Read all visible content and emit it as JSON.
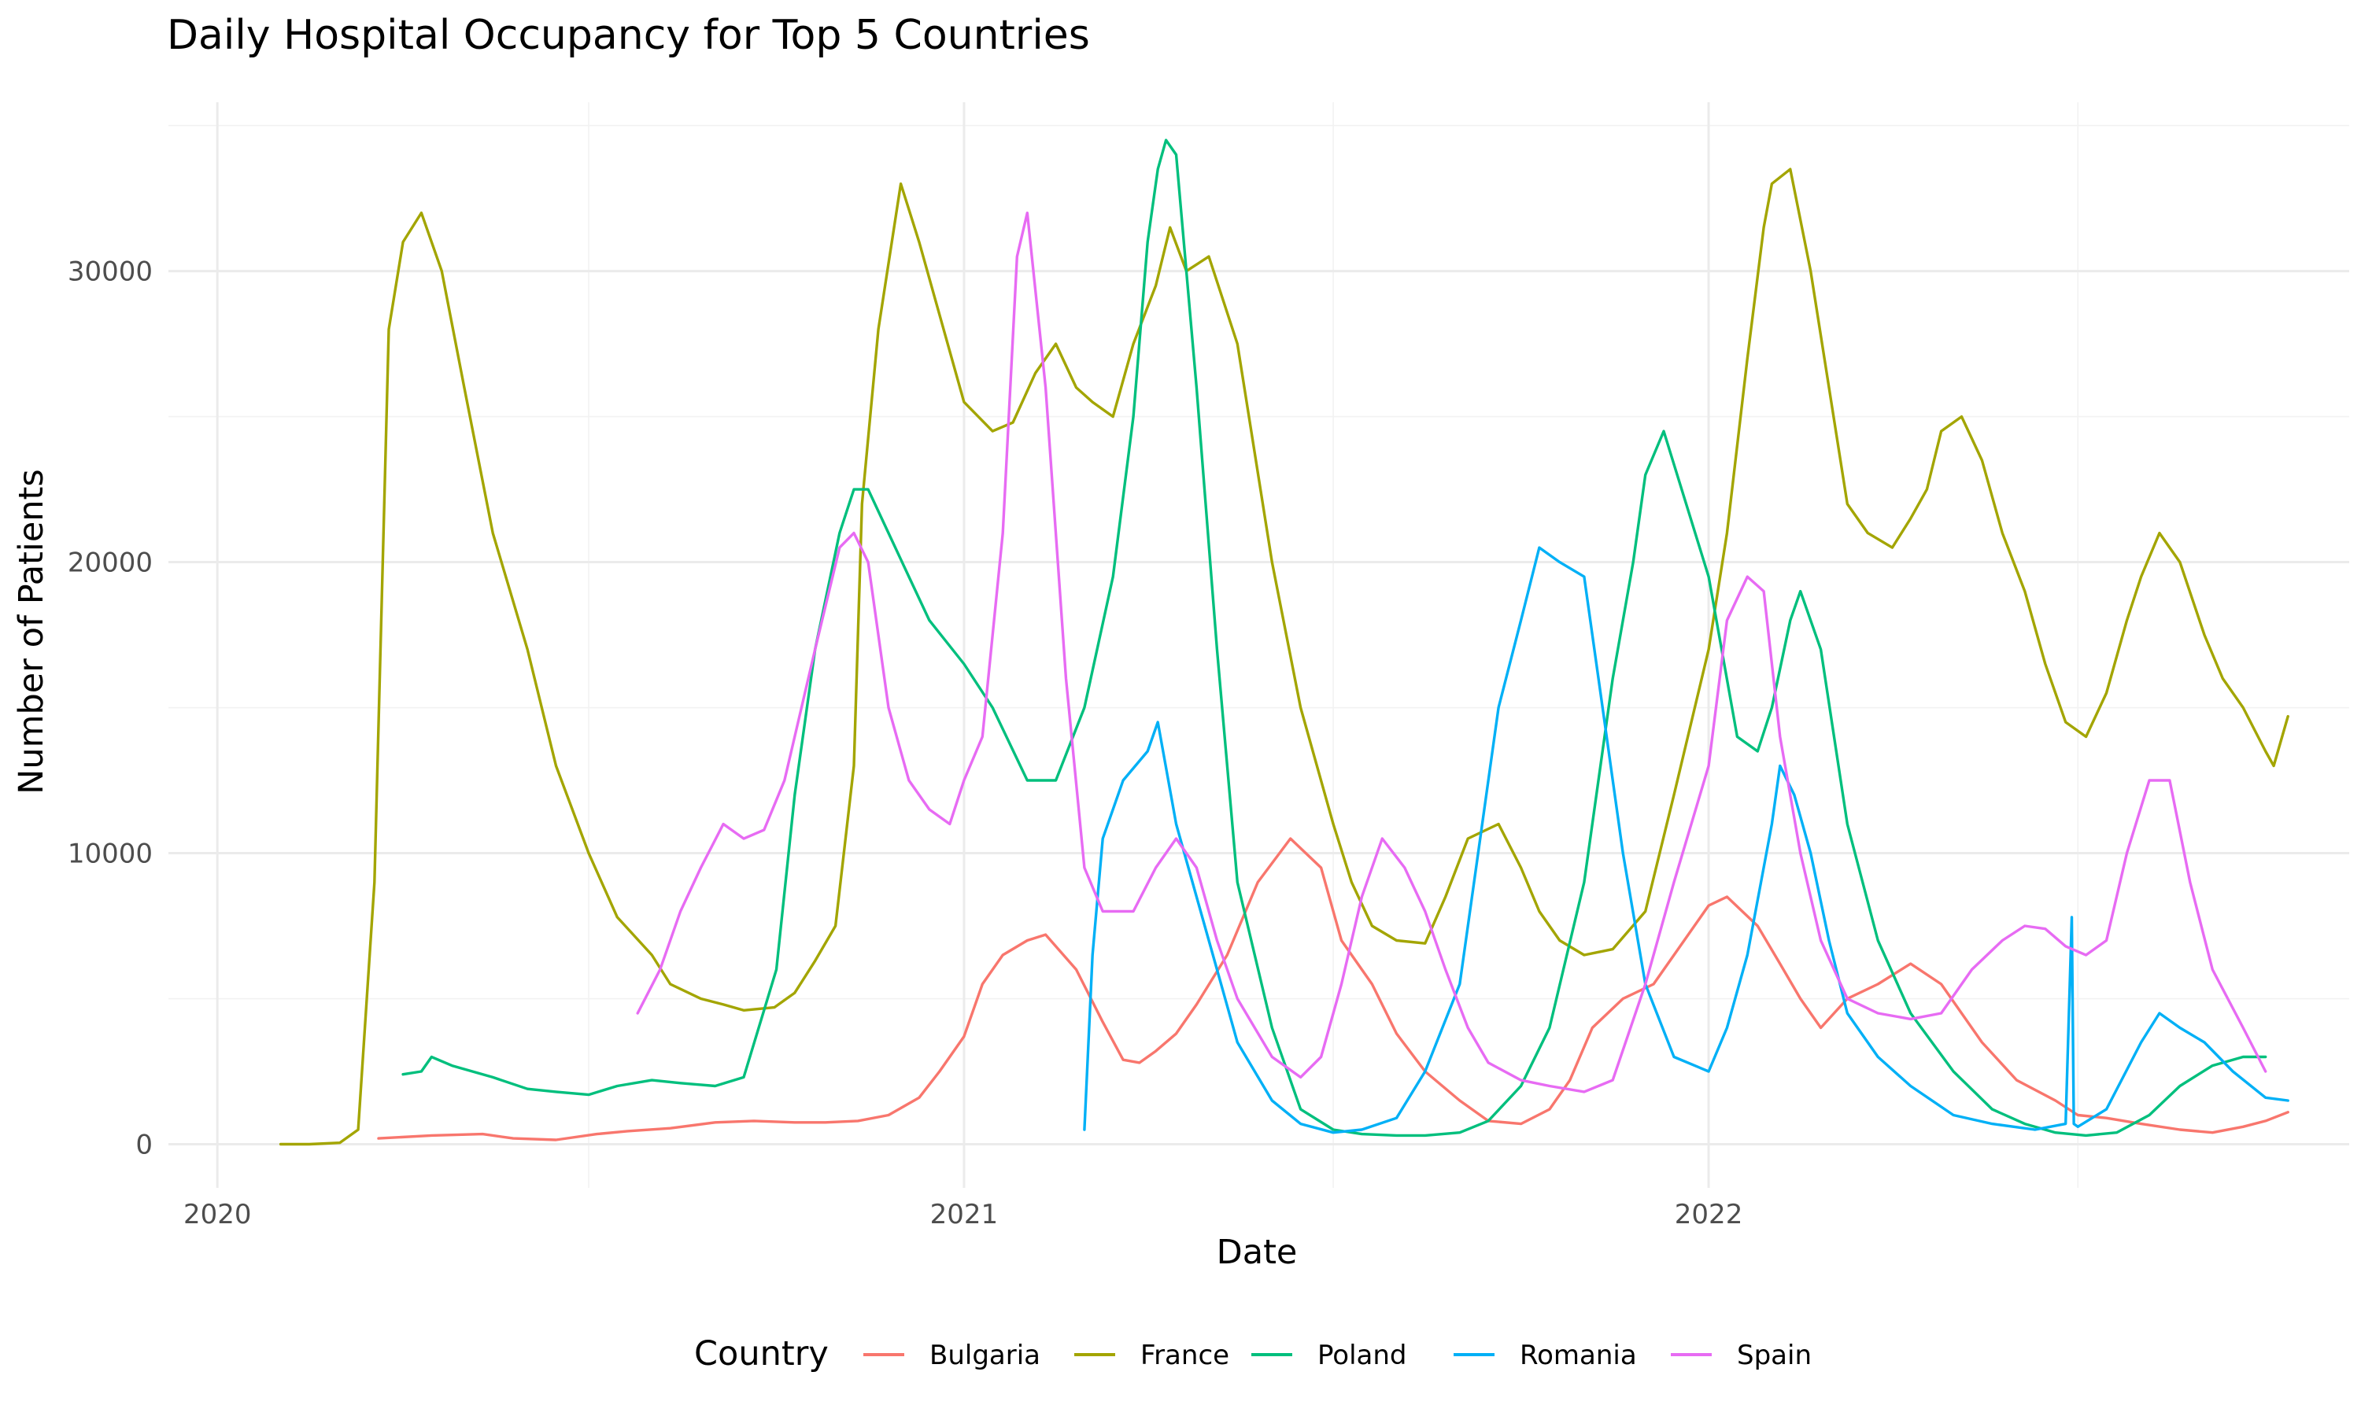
{
  "chart_data": {
    "type": "line",
    "title": "Daily Hospital Occupancy for Top 5 Countries",
    "xlabel": "Date",
    "ylabel": "Number of Patients",
    "x_type": "date",
    "xlim": [
      "2019-12-08",
      "2022-11-11"
    ],
    "ylim": [
      -1500,
      35800
    ],
    "x_ticks": [
      {
        "date": "2020-01-01",
        "label": "2020"
      },
      {
        "date": "2021-01-01",
        "label": "2021"
      },
      {
        "date": "2022-01-01",
        "label": "2022"
      }
    ],
    "x_minor_ticks": [
      "2020-07-01",
      "2021-07-01",
      "2022-07-01"
    ],
    "y_ticks": [
      0,
      10000,
      20000,
      30000
    ],
    "y_minor_ticks": [
      5000,
      15000,
      25000,
      35000
    ],
    "grid": true,
    "legend": {
      "title": "Country",
      "position": "bottom"
    },
    "series": [
      {
        "name": "Bulgaria",
        "color": "#F8766D",
        "x": [
          "2020-03-20",
          "2020-04-15",
          "2020-05-10",
          "2020-05-25",
          "2020-06-15",
          "2020-07-05",
          "2020-07-20",
          "2020-08-10",
          "2020-09-01",
          "2020-09-20",
          "2020-10-10",
          "2020-10-25",
          "2020-11-10",
          "2020-11-25",
          "2020-12-10",
          "2020-12-20",
          "2021-01-01",
          "2021-01-10",
          "2021-01-20",
          "2021-02-01",
          "2021-02-10",
          "2021-02-25",
          "2021-03-10",
          "2021-03-20",
          "2021-03-28",
          "2021-04-05",
          "2021-04-15",
          "2021-04-25",
          "2021-05-10",
          "2021-05-25",
          "2021-06-10",
          "2021-06-25",
          "2021-07-05",
          "2021-07-20",
          "2021-08-01",
          "2021-08-15",
          "2021-09-01",
          "2021-09-15",
          "2021-10-01",
          "2021-10-15",
          "2021-10-25",
          "2021-11-05",
          "2021-11-20",
          "2021-12-05",
          "2021-12-20",
          "2022-01-01",
          "2022-01-10",
          "2022-01-25",
          "2022-02-05",
          "2022-02-15",
          "2022-02-25",
          "2022-03-10",
          "2022-03-25",
          "2022-04-10",
          "2022-04-25",
          "2022-05-15",
          "2022-06-01",
          "2022-06-20",
          "2022-07-01",
          "2022-07-15",
          "2022-08-01",
          "2022-08-20",
          "2022-09-05",
          "2022-09-20",
          "2022-10-01",
          "2022-10-12"
        ],
        "y": [
          200,
          300,
          350,
          200,
          150,
          350,
          450,
          550,
          750,
          800,
          750,
          750,
          800,
          1000,
          1600,
          2500,
          3700,
          5500,
          6500,
          7000,
          7200,
          6000,
          4200,
          2900,
          2800,
          3200,
          3800,
          4800,
          6500,
          9000,
          10500,
          9500,
          7000,
          5500,
          3800,
          2500,
          1500,
          800,
          700,
          1200,
          2200,
          4000,
          5000,
          5500,
          7000,
          8200,
          8500,
          7500,
          6200,
          5000,
          4000,
          5000,
          5500,
          6200,
          5500,
          3500,
          2200,
          1500,
          1000,
          900,
          700,
          500,
          400,
          600,
          800,
          1100
        ]
      },
      {
        "name": "France",
        "color": "#A3A500",
        "x": [
          "2020-02-01",
          "2020-02-15",
          "2020-03-01",
          "2020-03-10",
          "2020-03-18",
          "2020-03-25",
          "2020-04-01",
          "2020-04-10",
          "2020-04-20",
          "2020-05-01",
          "2020-05-15",
          "2020-06-01",
          "2020-06-15",
          "2020-07-01",
          "2020-07-15",
          "2020-08-01",
          "2020-08-10",
          "2020-08-25",
          "2020-09-05",
          "2020-09-15",
          "2020-09-30",
          "2020-10-10",
          "2020-10-20",
          "2020-10-30",
          "2020-11-08",
          "2020-11-12",
          "2020-11-20",
          "2020-12-01",
          "2020-12-10",
          "2020-12-20",
          "2021-01-01",
          "2021-01-15",
          "2021-01-25",
          "2021-02-05",
          "2021-02-15",
          "2021-02-25",
          "2021-03-05",
          "2021-03-15",
          "2021-03-25",
          "2021-04-05",
          "2021-04-12",
          "2021-04-20",
          "2021-05-01",
          "2021-05-15",
          "2021-06-01",
          "2021-06-15",
          "2021-07-01",
          "2021-07-10",
          "2021-07-20",
          "2021-08-01",
          "2021-08-15",
          "2021-08-25",
          "2021-09-05",
          "2021-09-20",
          "2021-10-01",
          "2021-10-10",
          "2021-10-20",
          "2021-11-01",
          "2021-11-15",
          "2021-12-01",
          "2021-12-15",
          "2022-01-01",
          "2022-01-10",
          "2022-01-20",
          "2022-01-28",
          "2022-02-01",
          "2022-02-10",
          "2022-02-20",
          "2022-03-01",
          "2022-03-10",
          "2022-03-20",
          "2022-04-01",
          "2022-04-10",
          "2022-04-18",
          "2022-04-25",
          "2022-05-05",
          "2022-05-15",
          "2022-05-25",
          "2022-06-05",
          "2022-06-15",
          "2022-06-25",
          "2022-07-05",
          "2022-07-15",
          "2022-07-25",
          "2022-08-01",
          "2022-08-10",
          "2022-08-20",
          "2022-09-01",
          "2022-09-10",
          "2022-09-20",
          "2022-10-01",
          "2022-10-05",
          "2022-10-12"
        ],
        "y": [
          0,
          0,
          50,
          500,
          9000,
          28000,
          31000,
          32000,
          30000,
          26000,
          21000,
          17000,
          13000,
          10000,
          7800,
          6500,
          5500,
          5000,
          4800,
          4600,
          4700,
          5200,
          6300,
          7500,
          13000,
          22000,
          28000,
          33000,
          31000,
          28500,
          25500,
          24500,
          24800,
          26500,
          27500,
          26000,
          25500,
          25000,
          27500,
          29500,
          31500,
          30000,
          30500,
          27500,
          20000,
          15000,
          11000,
          9000,
          7500,
          7000,
          6900,
          8500,
          10500,
          11000,
          9500,
          8000,
          7000,
          6500,
          6700,
          8000,
          12000,
          17000,
          21000,
          27000,
          31500,
          33000,
          33500,
          30000,
          26000,
          22000,
          21000,
          20500,
          21500,
          22500,
          24500,
          25000,
          23500,
          21000,
          19000,
          16500,
          14500,
          14000,
          15500,
          18000,
          19500,
          21000,
          20000,
          17500,
          16000,
          15000,
          13500,
          13000,
          14700
        ]
      },
      {
        "name": "Poland",
        "color": "#00BF7D",
        "x": [
          "2020-04-01",
          "2020-04-10",
          "2020-04-15",
          "2020-04-25",
          "2020-05-15",
          "2020-06-01",
          "2020-06-15",
          "2020-07-01",
          "2020-07-15",
          "2020-08-01",
          "2020-08-15",
          "2020-09-01",
          "2020-09-15",
          "2020-10-01",
          "2020-10-10",
          "2020-10-20",
          "2020-11-01",
          "2020-11-08",
          "2020-11-15",
          "2020-11-25",
          "2020-12-05",
          "2020-12-15",
          "2021-01-01",
          "2021-01-15",
          "2021-02-01",
          "2021-02-15",
          "2021-03-01",
          "2021-03-15",
          "2021-03-25",
          "2021-04-01",
          "2021-04-06",
          "2021-04-10",
          "2021-04-15",
          "2021-04-25",
          "2021-05-05",
          "2021-05-15",
          "2021-06-01",
          "2021-06-15",
          "2021-07-01",
          "2021-07-15",
          "2021-08-01",
          "2021-08-15",
          "2021-09-01",
          "2021-09-15",
          "2021-10-01",
          "2021-10-15",
          "2021-11-01",
          "2021-11-15",
          "2021-11-25",
          "2021-12-01",
          "2021-12-10",
          "2022-01-01",
          "2022-01-15",
          "2022-01-25",
          "2022-02-01",
          "2022-02-10",
          "2022-02-15",
          "2022-02-25",
          "2022-03-10",
          "2022-03-25",
          "2022-04-10",
          "2022-05-01",
          "2022-05-20",
          "2022-06-05",
          "2022-06-20",
          "2022-07-05",
          "2022-07-20",
          "2022-08-05",
          "2022-08-20",
          "2022-09-05",
          "2022-09-20",
          "2022-10-01"
        ],
        "y": [
          2400,
          2500,
          3000,
          2700,
          2300,
          1900,
          1800,
          1700,
          2000,
          2200,
          2100,
          2000,
          2300,
          6000,
          12000,
          17000,
          21000,
          22500,
          22500,
          21000,
          19500,
          18000,
          16500,
          15000,
          12500,
          12500,
          15000,
          19500,
          25000,
          31000,
          33500,
          34500,
          34000,
          26000,
          17000,
          9000,
          4000,
          1200,
          500,
          350,
          300,
          300,
          400,
          800,
          2000,
          4000,
          9000,
          16000,
          20000,
          23000,
          24500,
          19500,
          14000,
          13500,
          15000,
          18000,
          19000,
          17000,
          11000,
          7000,
          4500,
          2500,
          1200,
          700,
          400,
          300,
          400,
          1000,
          2000,
          2700,
          3000,
          3000
        ]
      },
      {
        "name": "Romania",
        "color": "#00B0F6",
        "x": [
          "2021-03-01",
          "2021-03-05",
          "2021-03-10",
          "2021-03-20",
          "2021-04-01",
          "2021-04-06",
          "2021-04-15",
          "2021-04-25",
          "2021-05-05",
          "2021-05-15",
          "2021-06-01",
          "2021-06-15",
          "2021-07-01",
          "2021-07-15",
          "2021-08-01",
          "2021-08-15",
          "2021-09-01",
          "2021-09-10",
          "2021-09-20",
          "2021-10-01",
          "2021-10-10",
          "2021-10-20",
          "2021-11-01",
          "2021-11-10",
          "2021-11-20",
          "2021-12-01",
          "2021-12-15",
          "2022-01-01",
          "2022-01-10",
          "2022-01-20",
          "2022-02-01",
          "2022-02-05",
          "2022-02-12",
          "2022-02-20",
          "2022-03-01",
          "2022-03-10",
          "2022-03-25",
          "2022-04-10",
          "2022-05-01",
          "2022-05-20",
          "2022-06-10",
          "2022-06-25",
          "2022-06-28",
          "2022-06-29",
          "2022-07-01",
          "2022-07-15",
          "2022-08-01",
          "2022-08-10",
          "2022-08-20",
          "2022-09-01",
          "2022-09-15",
          "2022-10-01",
          "2022-10-12"
        ],
        "y": [
          500,
          6500,
          10500,
          12500,
          13500,
          14500,
          11000,
          8500,
          6000,
          3500,
          1500,
          700,
          400,
          500,
          900,
          2500,
          5500,
          10000,
          15000,
          18000,
          20500,
          20000,
          19500,
          15000,
          10000,
          5500,
          3000,
          2500,
          4000,
          6500,
          11000,
          13000,
          12000,
          10000,
          7000,
          4500,
          3000,
          2000,
          1000,
          700,
          500,
          700,
          7800,
          700,
          600,
          1200,
          3500,
          4500,
          4000,
          3500,
          2500,
          1600,
          1500
        ]
      },
      {
        "name": "Spain",
        "color": "#E76BF3",
        "x": [
          "2020-07-25",
          "2020-08-05",
          "2020-08-15",
          "2020-08-25",
          "2020-09-05",
          "2020-09-15",
          "2020-09-25",
          "2020-10-05",
          "2020-10-20",
          "2020-11-01",
          "2020-11-08",
          "2020-11-15",
          "2020-11-25",
          "2020-12-05",
          "2020-12-15",
          "2020-12-25",
          "2021-01-01",
          "2021-01-10",
          "2021-01-20",
          "2021-01-27",
          "2021-02-01",
          "2021-02-10",
          "2021-02-20",
          "2021-03-01",
          "2021-03-10",
          "2021-03-25",
          "2021-04-05",
          "2021-04-15",
          "2021-04-25",
          "2021-05-05",
          "2021-05-15",
          "2021-06-01",
          "2021-06-15",
          "2021-06-25",
          "2021-07-05",
          "2021-07-15",
          "2021-07-25",
          "2021-08-05",
          "2021-08-15",
          "2021-08-25",
          "2021-09-05",
          "2021-09-15",
          "2021-10-01",
          "2021-10-15",
          "2021-11-01",
          "2021-11-15",
          "2021-12-01",
          "2021-12-15",
          "2022-01-01",
          "2022-01-10",
          "2022-01-20",
          "2022-01-28",
          "2022-02-05",
          "2022-02-15",
          "2022-02-25",
          "2022-03-10",
          "2022-03-25",
          "2022-04-10",
          "2022-04-25",
          "2022-05-10",
          "2022-05-25",
          "2022-06-05",
          "2022-06-15",
          "2022-06-25",
          "2022-07-05",
          "2022-07-15",
          "2022-07-25",
          "2022-08-05",
          "2022-08-15",
          "2022-08-25",
          "2022-09-05",
          "2022-09-20",
          "2022-10-01"
        ],
        "y": [
          4500,
          6000,
          8000,
          9500,
          11000,
          10500,
          10800,
          12500,
          17000,
          20500,
          21000,
          20000,
          15000,
          12500,
          11500,
          11000,
          12500,
          14000,
          21000,
          30500,
          32000,
          26000,
          16000,
          9500,
          8000,
          8000,
          9500,
          10500,
          9500,
          7000,
          5000,
          3000,
          2300,
          3000,
          5500,
          8500,
          10500,
          9500,
          8000,
          6000,
          4000,
          2800,
          2200,
          2000,
          1800,
          2200,
          5500,
          9000,
          13000,
          18000,
          19500,
          19000,
          14000,
          10000,
          7000,
          5000,
          4500,
          4300,
          4500,
          6000,
          7000,
          7500,
          7400,
          6800,
          6500,
          7000,
          10000,
          12500,
          12500,
          9000,
          6000,
          4000,
          2500
        ]
      }
    ]
  }
}
